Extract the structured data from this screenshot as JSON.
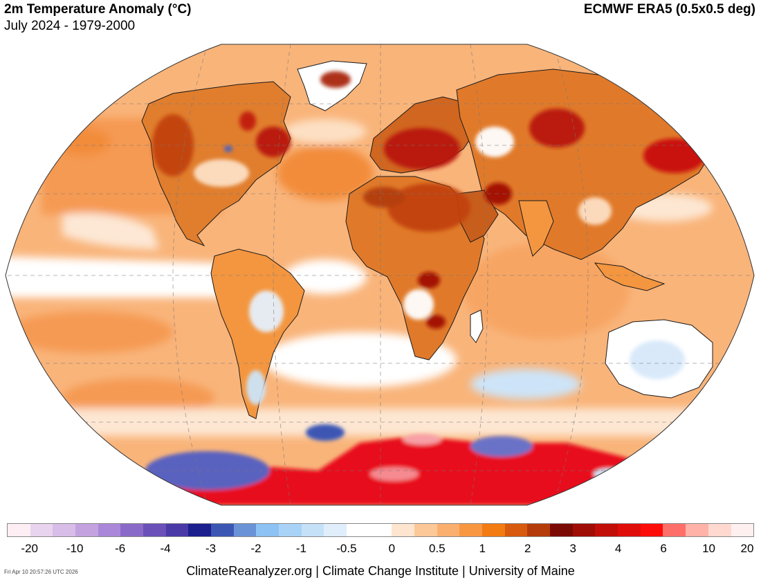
{
  "header": {
    "title": "2m Temperature Anomaly (°C)",
    "subtitle": "July 2024 - 1979-2000",
    "source": "ECMWF ERA5 (0.5x0.5 deg)"
  },
  "colorbar": {
    "colors": [
      "#fdeef4",
      "#e8d4ee",
      "#d8bde8",
      "#c4a2e0",
      "#ab87da",
      "#8a6ac8",
      "#6a50b8",
      "#4a3aa8",
      "#1c1f8e",
      "#3c56b4",
      "#6a92d6",
      "#8cc2f4",
      "#a9d3f6",
      "#c4e1f8",
      "#e0eefb",
      "#ffffff",
      "#ffffff",
      "#fde5d0",
      "#fcc898",
      "#fbaf6e",
      "#f99741",
      "#f27b12",
      "#d75a0e",
      "#b33c0a",
      "#7c0a04",
      "#a00c06",
      "#c10e08",
      "#e00e0a",
      "#fd0d0a",
      "#ff6f6a",
      "#ffb2a8",
      "#ffd9cf",
      "#fff0f0"
    ],
    "tick_labels": [
      "-20",
      "-10",
      "-6",
      "-4",
      "-3",
      "-2",
      "-1",
      "-0.5",
      "0",
      "0.5",
      "1",
      "2",
      "3",
      "4",
      "6",
      "10",
      "20"
    ]
  },
  "footer": {
    "credits": "ClimateReanalyzer.org | Climate Change Institute | University of Maine",
    "timestamp": "Fri Apr 10 20:57:26 UTC 2026"
  },
  "map": {
    "projection": "Winkel Tripel / Robinson-like global",
    "palette": {
      "ocean_warm": "#f7a968",
      "ocean_light": "#fbc99a",
      "neutral": "#ffffff",
      "cool_light": "#cde4f8",
      "cool": "#8cc2f4",
      "cool_strong": "#5a62c0",
      "land_warm": "#e07a2a",
      "hot": "#c11a08",
      "very_hot": "#e8101a",
      "extreme_hot": "#ff3a30",
      "extreme_pink": "#f7a0a6",
      "coastline": "#1a1a1a",
      "graticule": "#777777"
    }
  }
}
